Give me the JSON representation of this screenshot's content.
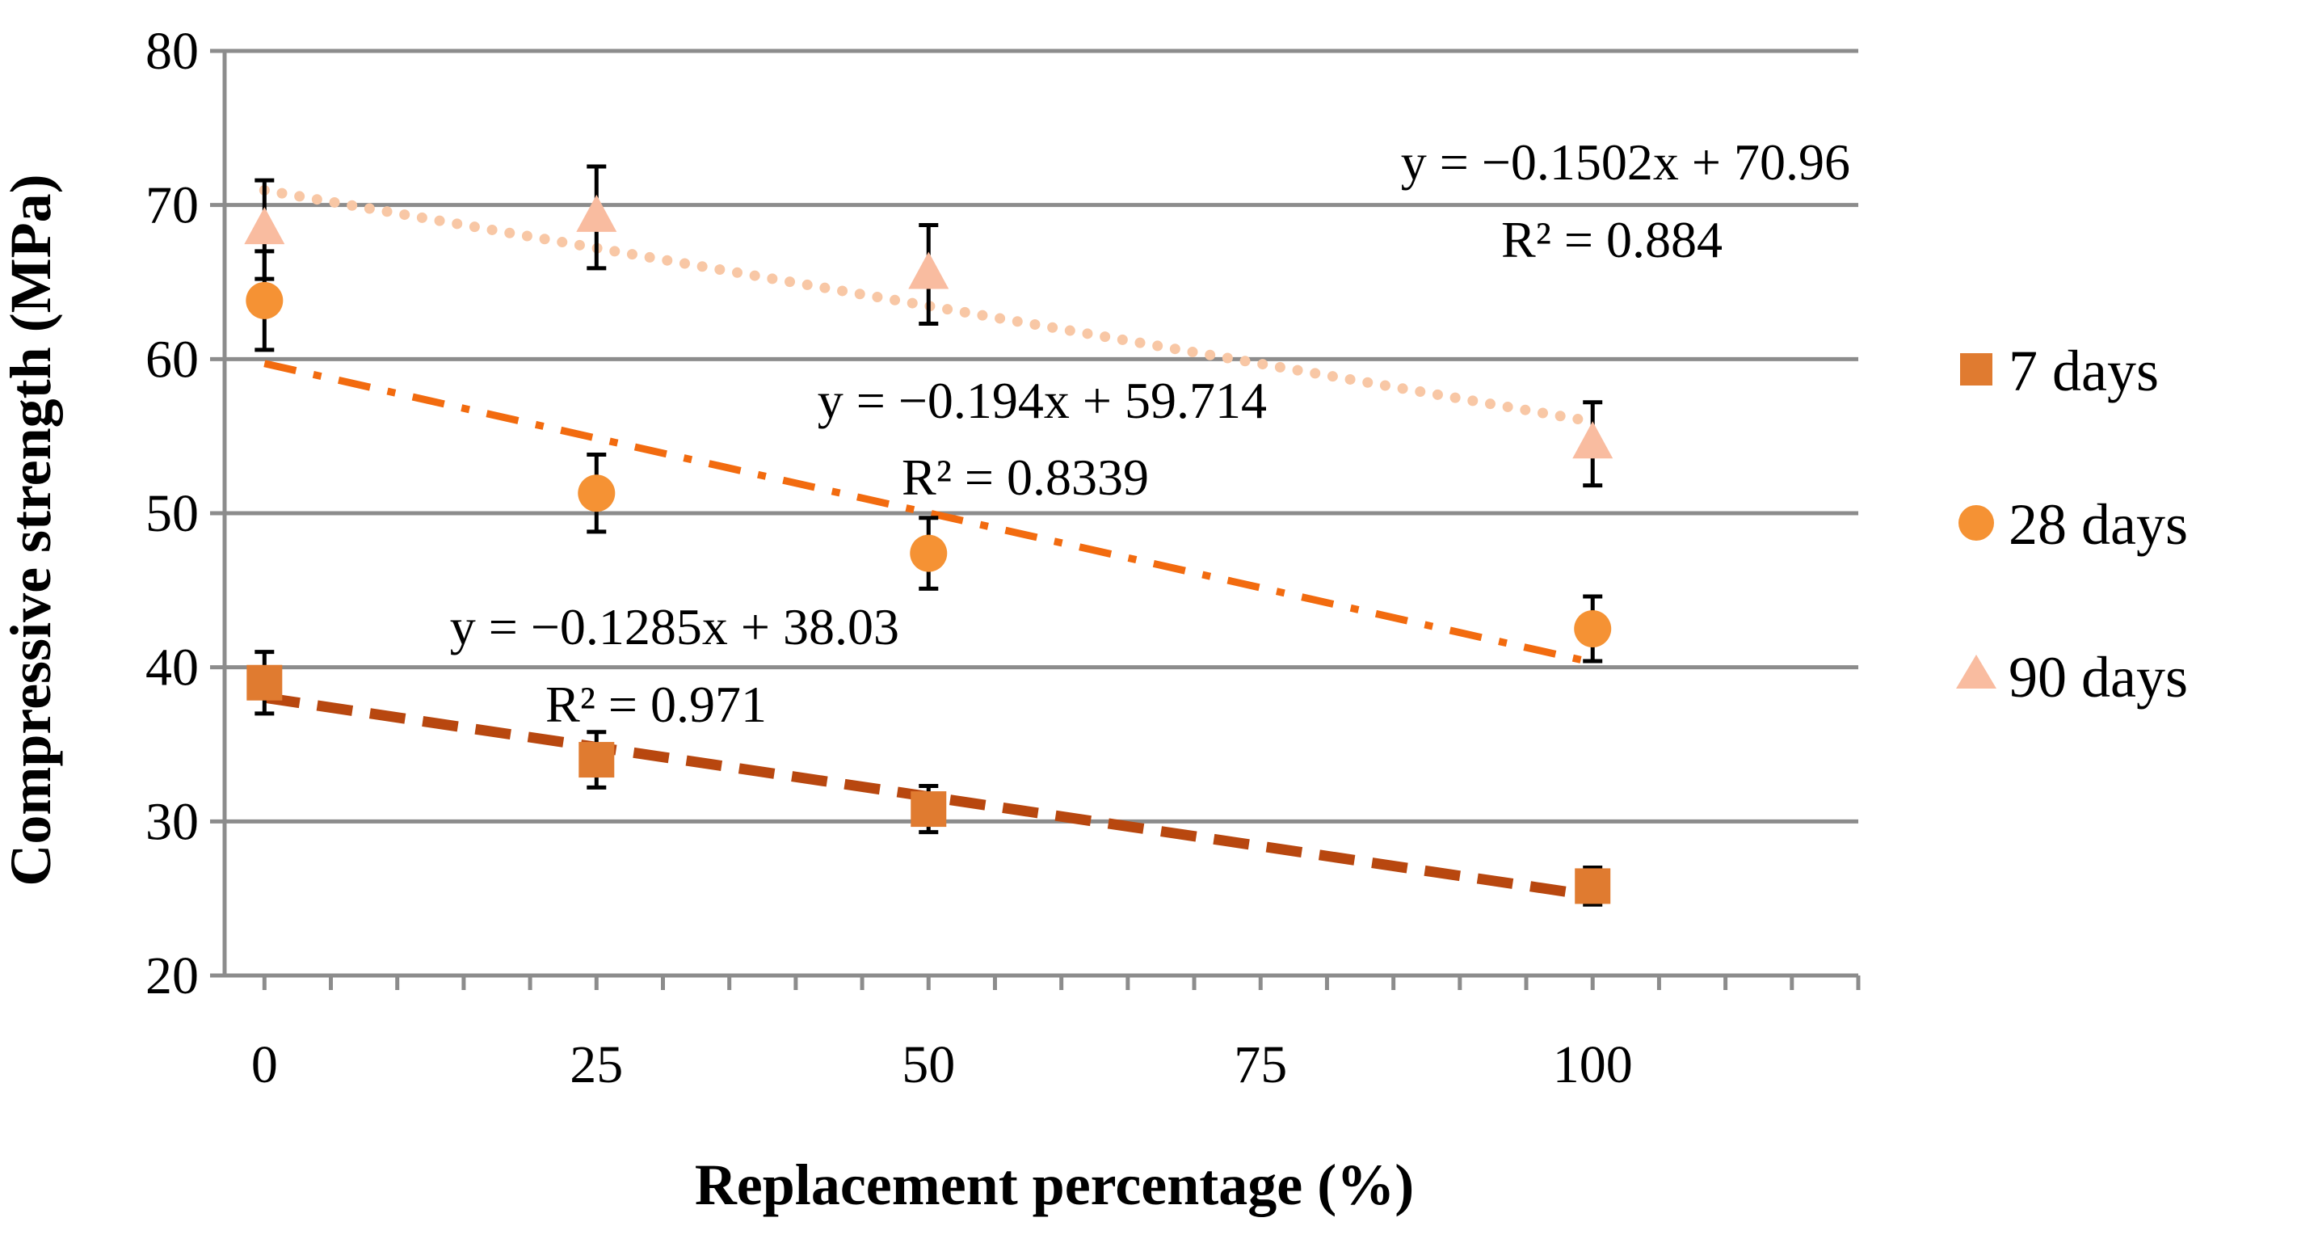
{
  "chart_data": {
    "type": "scatter",
    "xlabel": "Replacement percentage (%)",
    "ylabel": "Compressive strength (MPa)",
    "xlim": [
      -3,
      120
    ],
    "ylim": [
      20,
      80
    ],
    "x_ticks": [
      "0",
      "25",
      "50",
      "75",
      "100"
    ],
    "x_tick_values": [
      0,
      25,
      50,
      75,
      100
    ],
    "y_ticks": [
      "20",
      "30",
      "40",
      "50",
      "60",
      "70",
      "80"
    ],
    "y_tick_values": [
      20,
      30,
      40,
      50,
      60,
      70,
      80
    ],
    "x_minor_step": 5,
    "grid": "horizontal",
    "legend_position": "right",
    "series": [
      {
        "name": "7 days",
        "marker": "square",
        "color": "#E07B30",
        "x": [
          0,
          25,
          50,
          100
        ],
        "y": [
          39,
          34,
          30.8,
          25.8
        ],
        "error": [
          2,
          1.8,
          1.5,
          1.2
        ],
        "trendline": {
          "slope": -0.1285,
          "intercept": 38.03,
          "x_range": [
            0,
            100
          ],
          "style": "dash",
          "color": "#B8470F"
        },
        "equation": "y = −0.1285x + 38.03",
        "r2": "R² = 0.971"
      },
      {
        "name": "28 days",
        "marker": "circle",
        "color": "#F59234",
        "x": [
          0,
          25,
          50,
          100
        ],
        "y": [
          63.8,
          51.3,
          47.4,
          42.5
        ],
        "error": [
          3.2,
          2.5,
          2.3,
          2.1
        ],
        "trendline": {
          "slope": -0.194,
          "intercept": 59.714,
          "x_range": [
            0,
            100
          ],
          "style": "dashdot",
          "color": "#F26B0F"
        },
        "equation": "y = −0.194x + 59.714",
        "r2": "R² = 0.8339"
      },
      {
        "name": "90 days",
        "marker": "triangle",
        "color": "#F9BCA0",
        "x": [
          0,
          25,
          50,
          100
        ],
        "y": [
          68.4,
          69.2,
          65.5,
          54.5
        ],
        "error": [
          3.2,
          3.3,
          3.2,
          2.7
        ],
        "trendline": {
          "slope": -0.1502,
          "intercept": 70.96,
          "x_range": [
            0,
            100
          ],
          "style": "dot",
          "color": "#F8C7A5"
        },
        "equation": "y = −0.1502x + 70.96",
        "r2": "R² = 0.884"
      }
    ]
  },
  "colors": {
    "grid": "#8C8C8C",
    "axis": "#8C8C8C",
    "error_bar": "#000000"
  }
}
